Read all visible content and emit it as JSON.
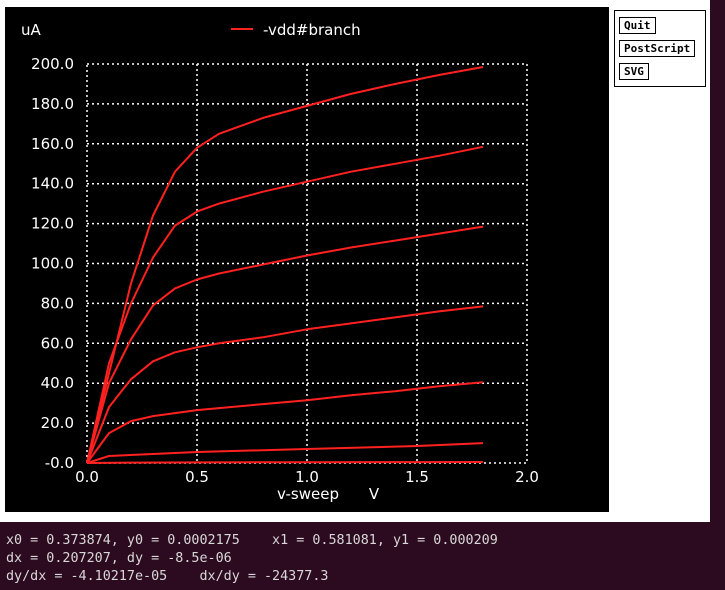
{
  "chart_data": {
    "type": "line",
    "yunit": "uA",
    "xlabel": "v-sweep",
    "xunit": "V",
    "xlim": [
      0.0,
      2.0
    ],
    "ylim": [
      0.0,
      200.0
    ],
    "x_ticks": [
      "0.0",
      "0.5",
      "1.0",
      "1.5",
      "2.0"
    ],
    "y_ticks": [
      "-0.0",
      "20.0",
      "40.0",
      "60.0",
      "80.0",
      "100.0",
      "120.0",
      "140.0",
      "160.0",
      "180.0",
      "200.0"
    ],
    "grid": true,
    "legend_position": "top-center",
    "line_color": "#ff2020",
    "series": [
      {
        "name": "-vdd#branch",
        "x": [
          0,
          0.2,
          0.5,
          1.0,
          1.5,
          1.8
        ],
        "y": [
          0,
          0.2,
          0.3,
          0.4,
          0.45,
          0.5
        ]
      },
      {
        "x": [
          0,
          0.1,
          0.3,
          0.5,
          1.0,
          1.5,
          1.8
        ],
        "y": [
          0,
          3.5,
          4.5,
          5.5,
          7.0,
          8.5,
          10.0
        ]
      },
      {
        "x": [
          0,
          0.1,
          0.2,
          0.3,
          0.4,
          0.5,
          0.6,
          0.8,
          1.0,
          1.2,
          1.4,
          1.6,
          1.8
        ],
        "y": [
          0,
          15,
          21,
          23.5,
          25,
          26.5,
          27.5,
          29.5,
          31.5,
          34,
          36,
          38.5,
          40.5
        ]
      },
      {
        "x": [
          0,
          0.1,
          0.2,
          0.3,
          0.4,
          0.5,
          0.6,
          0.8,
          1.0,
          1.2,
          1.4,
          1.6,
          1.8
        ],
        "y": [
          0,
          28,
          42,
          51,
          55.5,
          58,
          60,
          63,
          67,
          70,
          73,
          76,
          78.5
        ]
      },
      {
        "x": [
          0,
          0.1,
          0.2,
          0.3,
          0.4,
          0.5,
          0.6,
          0.8,
          1.0,
          1.2,
          1.4,
          1.6,
          1.8
        ],
        "y": [
          0,
          40,
          62,
          79,
          87.5,
          92,
          95,
          99.5,
          104,
          108,
          111.5,
          115,
          118.5
        ]
      },
      {
        "x": [
          0,
          0.1,
          0.2,
          0.3,
          0.4,
          0.5,
          0.6,
          0.8,
          1.0,
          1.2,
          1.4,
          1.6,
          1.8
        ],
        "y": [
          0,
          50,
          80,
          103,
          119,
          126,
          130,
          136,
          141,
          146,
          150,
          154,
          158.5
        ]
      },
      {
        "x": [
          0,
          0.1,
          0.2,
          0.3,
          0.4,
          0.5,
          0.6,
          0.8,
          1.0,
          1.2,
          1.4,
          1.6,
          1.8
        ],
        "y": [
          0,
          45,
          90,
          124,
          146,
          158,
          165,
          173,
          179,
          185,
          190,
          194.5,
          198.5
        ]
      }
    ]
  },
  "buttons": {
    "quit": "Quit",
    "postscript": "PostScript",
    "svg": "SVG"
  },
  "readout": {
    "line1": "x0 = 0.373874, y0 = 0.0002175    x1 = 0.581081, y1 = 0.000209",
    "line2": "dx = 0.207207, dy = -8.5e-06",
    "line3": "dy/dx = -4.10217e-05    dx/dy = -24377.3"
  }
}
